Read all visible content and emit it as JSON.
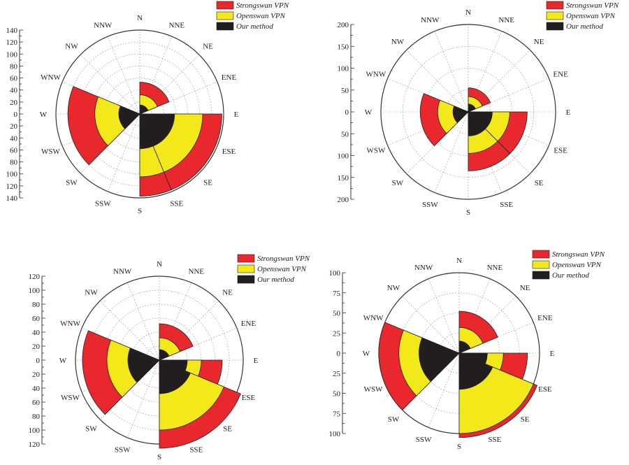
{
  "colors": {
    "strongswan": "#e8282c",
    "openswan": "#f2e81a",
    "ours": "#221e1f",
    "grid": "#9a9a9a",
    "axis": "#333333"
  },
  "chart_data": [
    {
      "type": "polar-bar",
      "title": "",
      "directions": [
        "N",
        "NNE",
        "NE",
        "ENE",
        "E",
        "ESE",
        "SE",
        "SSE",
        "S",
        "SSW",
        "SW",
        "WSW",
        "W",
        "WNW",
        "NW",
        "NNW"
      ],
      "legend": [
        "Strongswan VPN",
        "Openswan VPN",
        "Our method"
      ],
      "rmax": 140,
      "ticks": [
        0,
        20,
        40,
        60,
        80,
        100,
        120,
        140
      ],
      "sectors": [
        {
          "start": 0,
          "end": 67.5,
          "values": [
            53,
            32,
            15
          ]
        },
        {
          "start": 90,
          "end": 157.5,
          "values": [
            137,
            105,
            58
          ]
        },
        {
          "start": 157.5,
          "end": 180,
          "values": [
            137,
            105,
            58
          ]
        },
        {
          "start": 225,
          "end": 292.5,
          "values": [
            120,
            75,
            35
          ]
        }
      ]
    },
    {
      "type": "polar-bar",
      "title": "",
      "directions": [
        "N",
        "NNE",
        "NE",
        "ENE",
        "E",
        "ESE",
        "SE",
        "SSE",
        "S",
        "SSW",
        "SW",
        "WSW",
        "W",
        "WNW",
        "NW",
        "NNW"
      ],
      "legend": [
        "Strongswan VPN",
        "Openswan VPN",
        "Our method"
      ],
      "rmax": 200,
      "ticks": [
        0,
        50,
        100,
        150,
        200
      ],
      "sectors": [
        {
          "start": 0,
          "end": 67.5,
          "values": [
            55,
            35,
            18
          ]
        },
        {
          "start": 90,
          "end": 135,
          "values": [
            135,
            95,
            55
          ]
        },
        {
          "start": 135,
          "end": 180,
          "values": [
            135,
            95,
            55
          ]
        },
        {
          "start": 225,
          "end": 292.5,
          "values": [
            110,
            70,
            35
          ]
        }
      ]
    },
    {
      "type": "polar-bar",
      "title": "",
      "directions": [
        "N",
        "NNE",
        "NE",
        "ENE",
        "E",
        "ESE",
        "SE",
        "SSE",
        "S",
        "SSW",
        "SW",
        "WSW",
        "W",
        "WNW",
        "NW",
        "NNW"
      ],
      "legend": [
        "Strongswan VPN",
        "Openswan VPN",
        "Our method"
      ],
      "rmax": 120,
      "ticks": [
        0,
        20,
        40,
        60,
        80,
        100,
        120
      ],
      "sectors": [
        {
          "start": 0,
          "end": 67.5,
          "values": [
            52,
            32,
            15
          ]
        },
        {
          "start": 90,
          "end": 157.5,
          "values": [
            90,
            60,
            40
          ]
        },
        {
          "start": 112.5,
          "end": 180,
          "values": [
            128,
            100,
            48
          ]
        },
        {
          "start": 225,
          "end": 292.5,
          "values": [
            110,
            75,
            45
          ]
        }
      ]
    },
    {
      "type": "polar-bar",
      "title": "",
      "directions": [
        "N",
        "NNE",
        "NE",
        "ENE",
        "E",
        "ESE",
        "SE",
        "SSE",
        "S",
        "SSW",
        "SW",
        "WSW",
        "W",
        "WNW",
        "NW",
        "NNW"
      ],
      "legend": [
        "Strongswan VPN",
        "Openswan VPN",
        "Our method"
      ],
      "rmax": 100,
      "ticks": [
        0,
        25,
        50,
        75,
        100
      ],
      "sectors": [
        {
          "start": 0,
          "end": 67.5,
          "values": [
            52,
            32,
            15
          ]
        },
        {
          "start": 90,
          "end": 157.5,
          "values": [
            85,
            55,
            35
          ]
        },
        {
          "start": 112.5,
          "end": 180,
          "values": [
            135,
            100,
            45
          ]
        },
        {
          "start": 225,
          "end": 292.5,
          "values": [
            100,
            75,
            50
          ]
        }
      ]
    }
  ]
}
